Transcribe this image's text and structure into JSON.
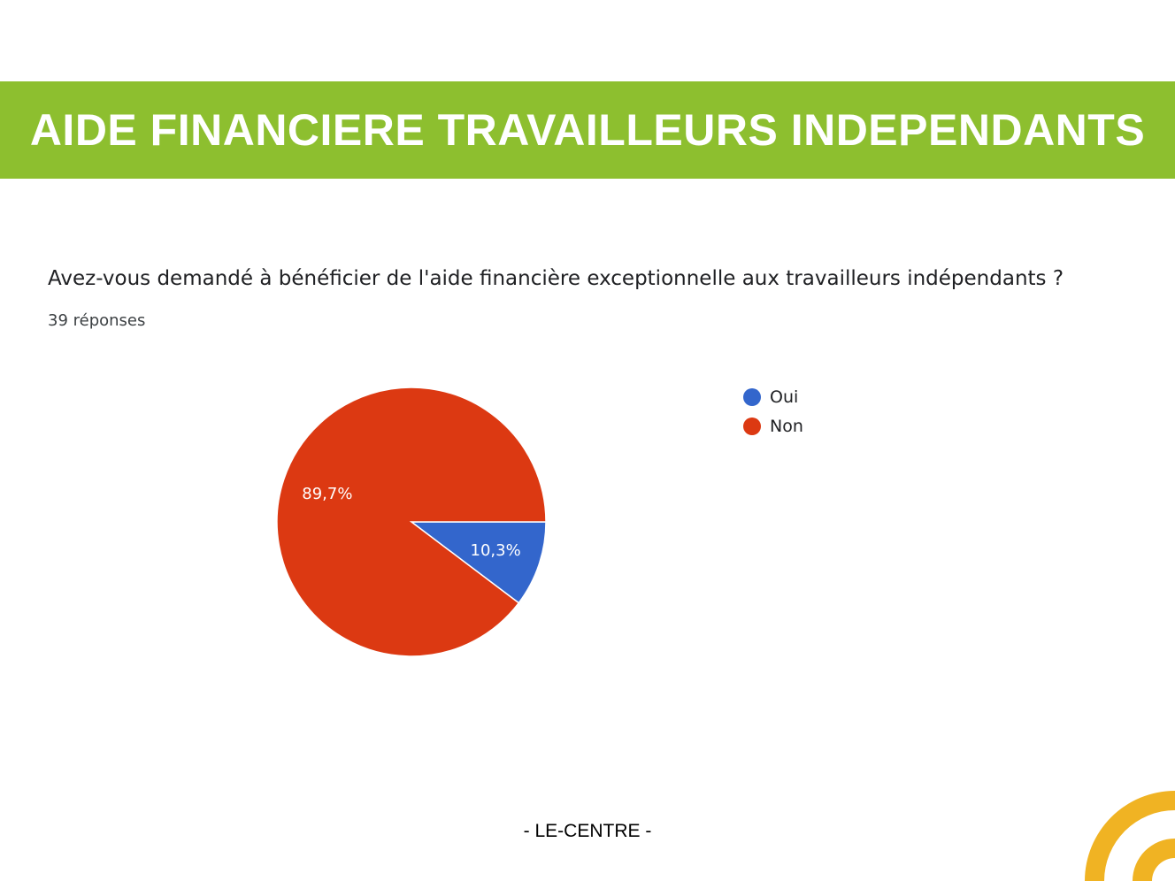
{
  "header": {
    "title": "AIDE FINANCIERE TRAVAILLEURS INDEPENDANTS"
  },
  "chart_data": {
    "type": "pie",
    "title": "Avez-vous demandé à bénéficier de l'aide financière exceptionnelle aux travailleurs indépendants ?",
    "subtitle": "39 réponses",
    "legend_position": "right",
    "slices": [
      {
        "label": "Oui",
        "value": 10.3,
        "display": "10,3%",
        "color": "#3366cc"
      },
      {
        "label": "Non",
        "value": 89.7,
        "display": "89,7%",
        "color": "#dc3912"
      }
    ]
  },
  "footer": {
    "text": "- LE-CENTRE -"
  },
  "colors": {
    "banner": "#8dbf2f",
    "logo": "#f0b323"
  }
}
